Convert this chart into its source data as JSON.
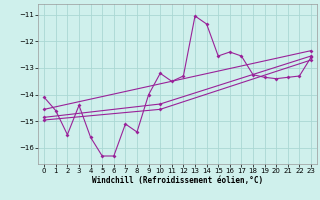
{
  "xlabel": "Windchill (Refroidissement éolien,°C)",
  "background_color": "#cff0ec",
  "grid_color": "#aad8d3",
  "line_color": "#992299",
  "xlim": [
    -0.5,
    23.5
  ],
  "ylim": [
    -16.6,
    -10.6
  ],
  "yticks": [
    -16,
    -15,
    -14,
    -13,
    -12,
    -11
  ],
  "xticks": [
    0,
    1,
    2,
    3,
    4,
    5,
    6,
    7,
    8,
    9,
    10,
    11,
    12,
    13,
    14,
    15,
    16,
    17,
    18,
    19,
    20,
    21,
    22,
    23
  ],
  "wavy_x": [
    0,
    1,
    2,
    3,
    4,
    5,
    6,
    7,
    8,
    9,
    10,
    11,
    12,
    13,
    14,
    15,
    16,
    17,
    18,
    19,
    20,
    21,
    22,
    23
  ],
  "wavy_y": [
    -14.1,
    -14.6,
    -15.5,
    -14.4,
    -15.6,
    -16.3,
    -16.3,
    -15.1,
    -15.4,
    -14.0,
    -13.2,
    -13.5,
    -13.3,
    -11.05,
    -11.35,
    -12.55,
    -12.4,
    -12.55,
    -13.25,
    -13.35,
    -13.4,
    -13.35,
    -13.3,
    -12.6
  ],
  "line1_x": [
    0,
    23
  ],
  "line1_y": [
    -14.55,
    -12.35
  ],
  "line2_x": [
    0,
    10,
    23
  ],
  "line2_y": [
    -14.85,
    -14.35,
    -12.55
  ],
  "line3_x": [
    0,
    10,
    23
  ],
  "line3_y": [
    -14.95,
    -14.55,
    -12.7
  ]
}
